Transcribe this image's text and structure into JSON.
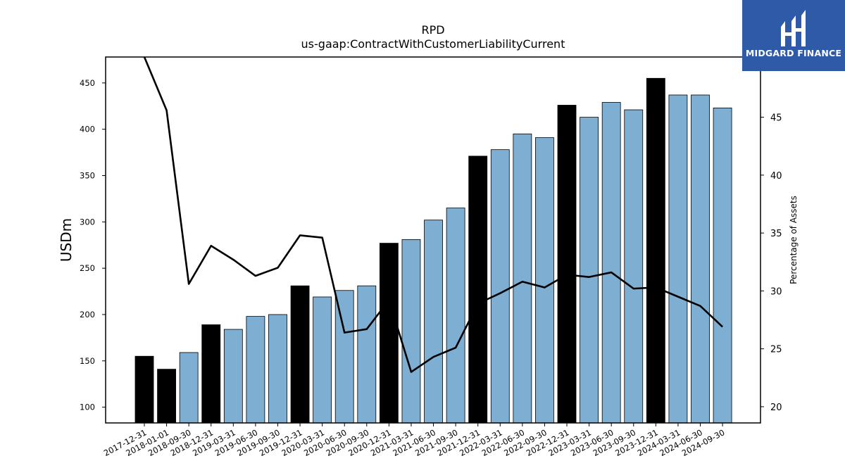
{
  "logo": {
    "text": "MIDGARD FINANCE"
  },
  "colors": {
    "bar_regular": "#7eafd3",
    "bar_highlight": "#000000",
    "line": "#000000",
    "logo_bg": "#2f5aa8"
  },
  "chart_data": {
    "type": "bar",
    "title": "RPD",
    "subtitle": "us-gaap:ContractWithCustomerLiabilityCurrent",
    "ylabel": "USDm",
    "ylabel_right": "Percentage of Assets",
    "ylim": [
      83,
      478
    ],
    "ylim_right": [
      18.6,
      50.2
    ],
    "yticks": [
      100,
      150,
      200,
      250,
      300,
      350,
      400,
      450
    ],
    "yticks_right": [
      20,
      25,
      30,
      35,
      40,
      45
    ],
    "categories": [
      "2017-12-31",
      "2018-01-01",
      "2018-09-30",
      "2018-12-31",
      "2019-03-31",
      "2019-06-30",
      "2019-09-30",
      "2019-12-31",
      "2020-03-31",
      "2020-06-30",
      "2020-09-30",
      "2020-12-31",
      "2021-03-31",
      "2021-06-30",
      "2021-09-30",
      "2021-12-31",
      "2022-03-31",
      "2022-06-30",
      "2022-09-30",
      "2022-12-31",
      "2023-03-31",
      "2023-06-30",
      "2023-09-30",
      "2023-12-31",
      "2024-03-31",
      "2024-06-30",
      "2024-09-30"
    ],
    "series": [
      {
        "values": [
          155,
          141,
          159,
          189,
          184,
          198,
          200,
          231,
          219,
          226,
          231,
          277,
          281,
          302,
          315,
          371,
          378,
          395,
          391,
          426,
          413,
          429,
          421,
          455,
          437,
          437,
          423
        ]
      },
      {
        "values": [
          50.2,
          45.6,
          30.6,
          33.9,
          32.7,
          31.3,
          32.0,
          34.8,
          34.6,
          26.4,
          26.7,
          29.2,
          23.0,
          24.3,
          25.1,
          28.9,
          29.8,
          30.8,
          30.3,
          31.4,
          31.2,
          31.6,
          30.2,
          30.3,
          29.5,
          28.7,
          26.9
        ]
      }
    ],
    "highlight": [
      true,
      true,
      false,
      true,
      false,
      false,
      false,
      true,
      false,
      false,
      false,
      true,
      false,
      false,
      false,
      true,
      false,
      false,
      false,
      true,
      false,
      false,
      false,
      true,
      false,
      false,
      false
    ]
  }
}
